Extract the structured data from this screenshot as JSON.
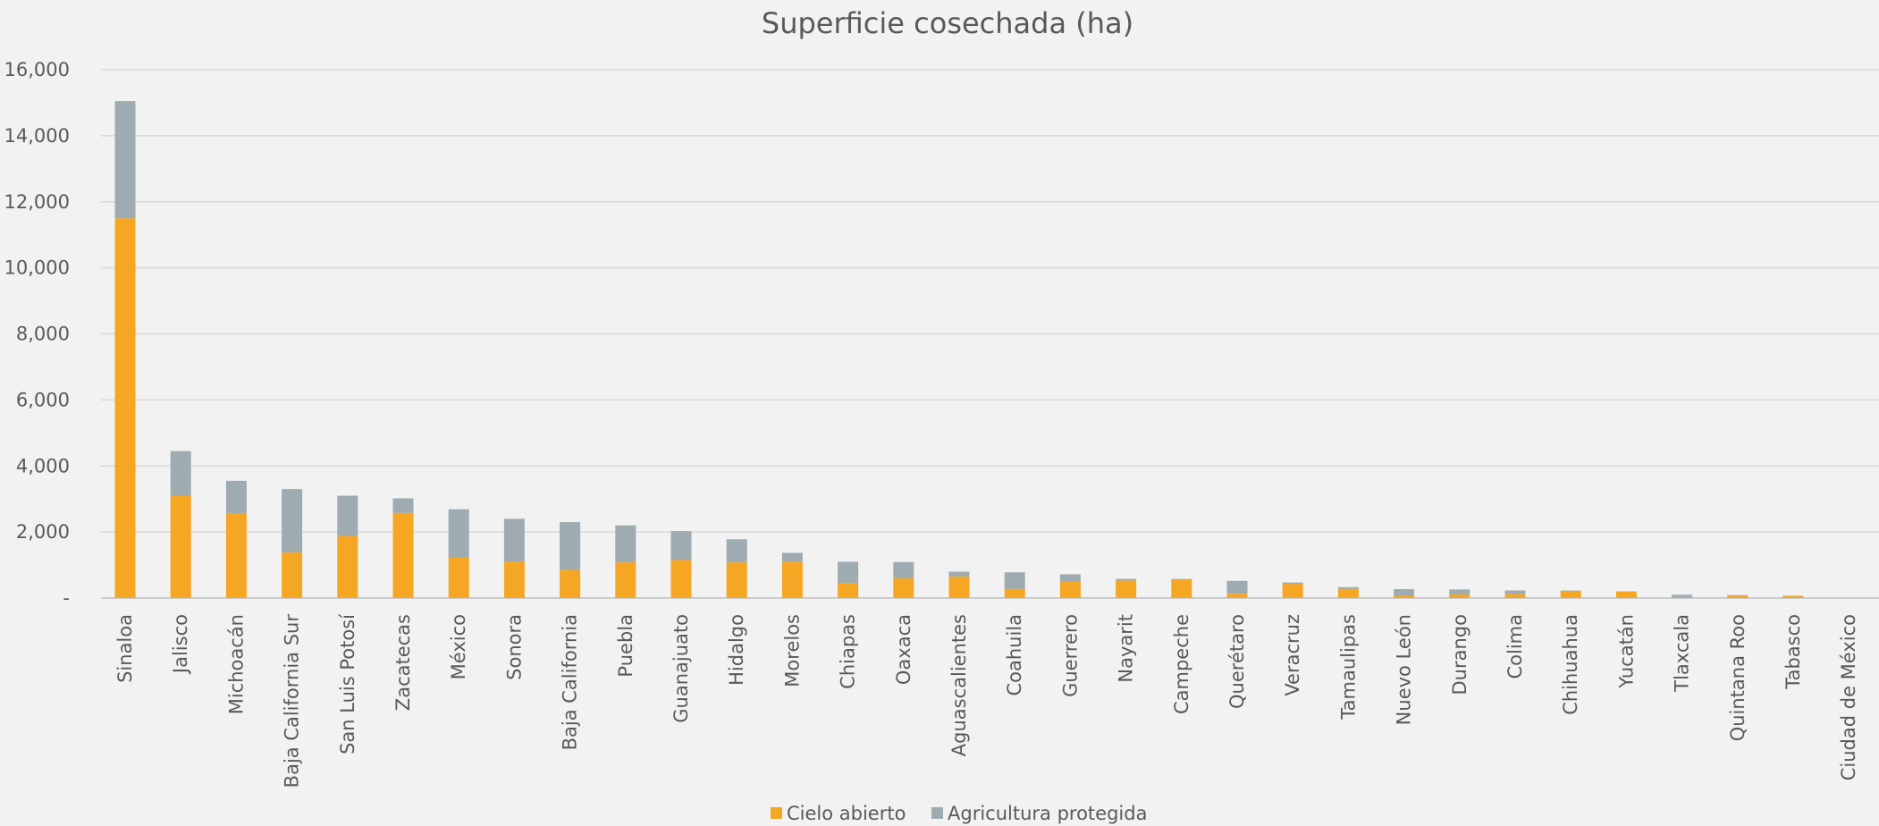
{
  "chart_data": {
    "type": "bar",
    "stacked": true,
    "title": "Superficie cosechada (ha)",
    "xlabel": "",
    "ylabel": "",
    "ylim": [
      0,
      16000
    ],
    "yticks": [
      0,
      2000,
      4000,
      6000,
      8000,
      10000,
      12000,
      14000,
      16000
    ],
    "ytick_labels": [
      "-",
      "2,000",
      "4,000",
      "6,000",
      "8,000",
      "10,000",
      "12,000",
      "14,000",
      "16,000"
    ],
    "grid": true,
    "legend_position": "bottom",
    "categories": [
      "Sinaloa",
      "Jalisco",
      "Michoacán",
      "Baja California Sur",
      "San Luis Potosí",
      "Zacatecas",
      "México",
      "Sonora",
      "Baja California",
      "Puebla",
      "Guanajuato",
      "Hidalgo",
      "Morelos",
      "Chiapas",
      "Oaxaca",
      "Aguascalientes",
      "Coahuila",
      "Guerrero",
      "Nayarit",
      "Campeche",
      "Querétaro",
      "Veracruz",
      "Tamaulipas",
      "Nuevo León",
      "Durango",
      "Colima",
      "Chihuahua",
      "Yucatán",
      "Tlaxcala",
      "Quintana Roo",
      "Tabasco",
      "Ciudad de México"
    ],
    "series": [
      {
        "name": "Cielo abierto",
        "color": "#f5a623",
        "values": [
          11500,
          3100,
          2550,
          1380,
          1880,
          2580,
          1220,
          1100,
          850,
          1080,
          1150,
          1080,
          1100,
          450,
          600,
          650,
          280,
          500,
          530,
          570,
          130,
          430,
          280,
          80,
          110,
          120,
          220,
          190,
          30,
          80,
          60,
          0
        ]
      },
      {
        "name": "Agricultura protegida",
        "color": "#9eacb2",
        "values": [
          3550,
          1350,
          1000,
          1920,
          1220,
          440,
          1470,
          1300,
          1450,
          1120,
          880,
          700,
          270,
          650,
          490,
          150,
          500,
          220,
          50,
          10,
          390,
          40,
          50,
          190,
          150,
          110,
          10,
          10,
          70,
          10,
          10,
          0
        ]
      }
    ]
  }
}
